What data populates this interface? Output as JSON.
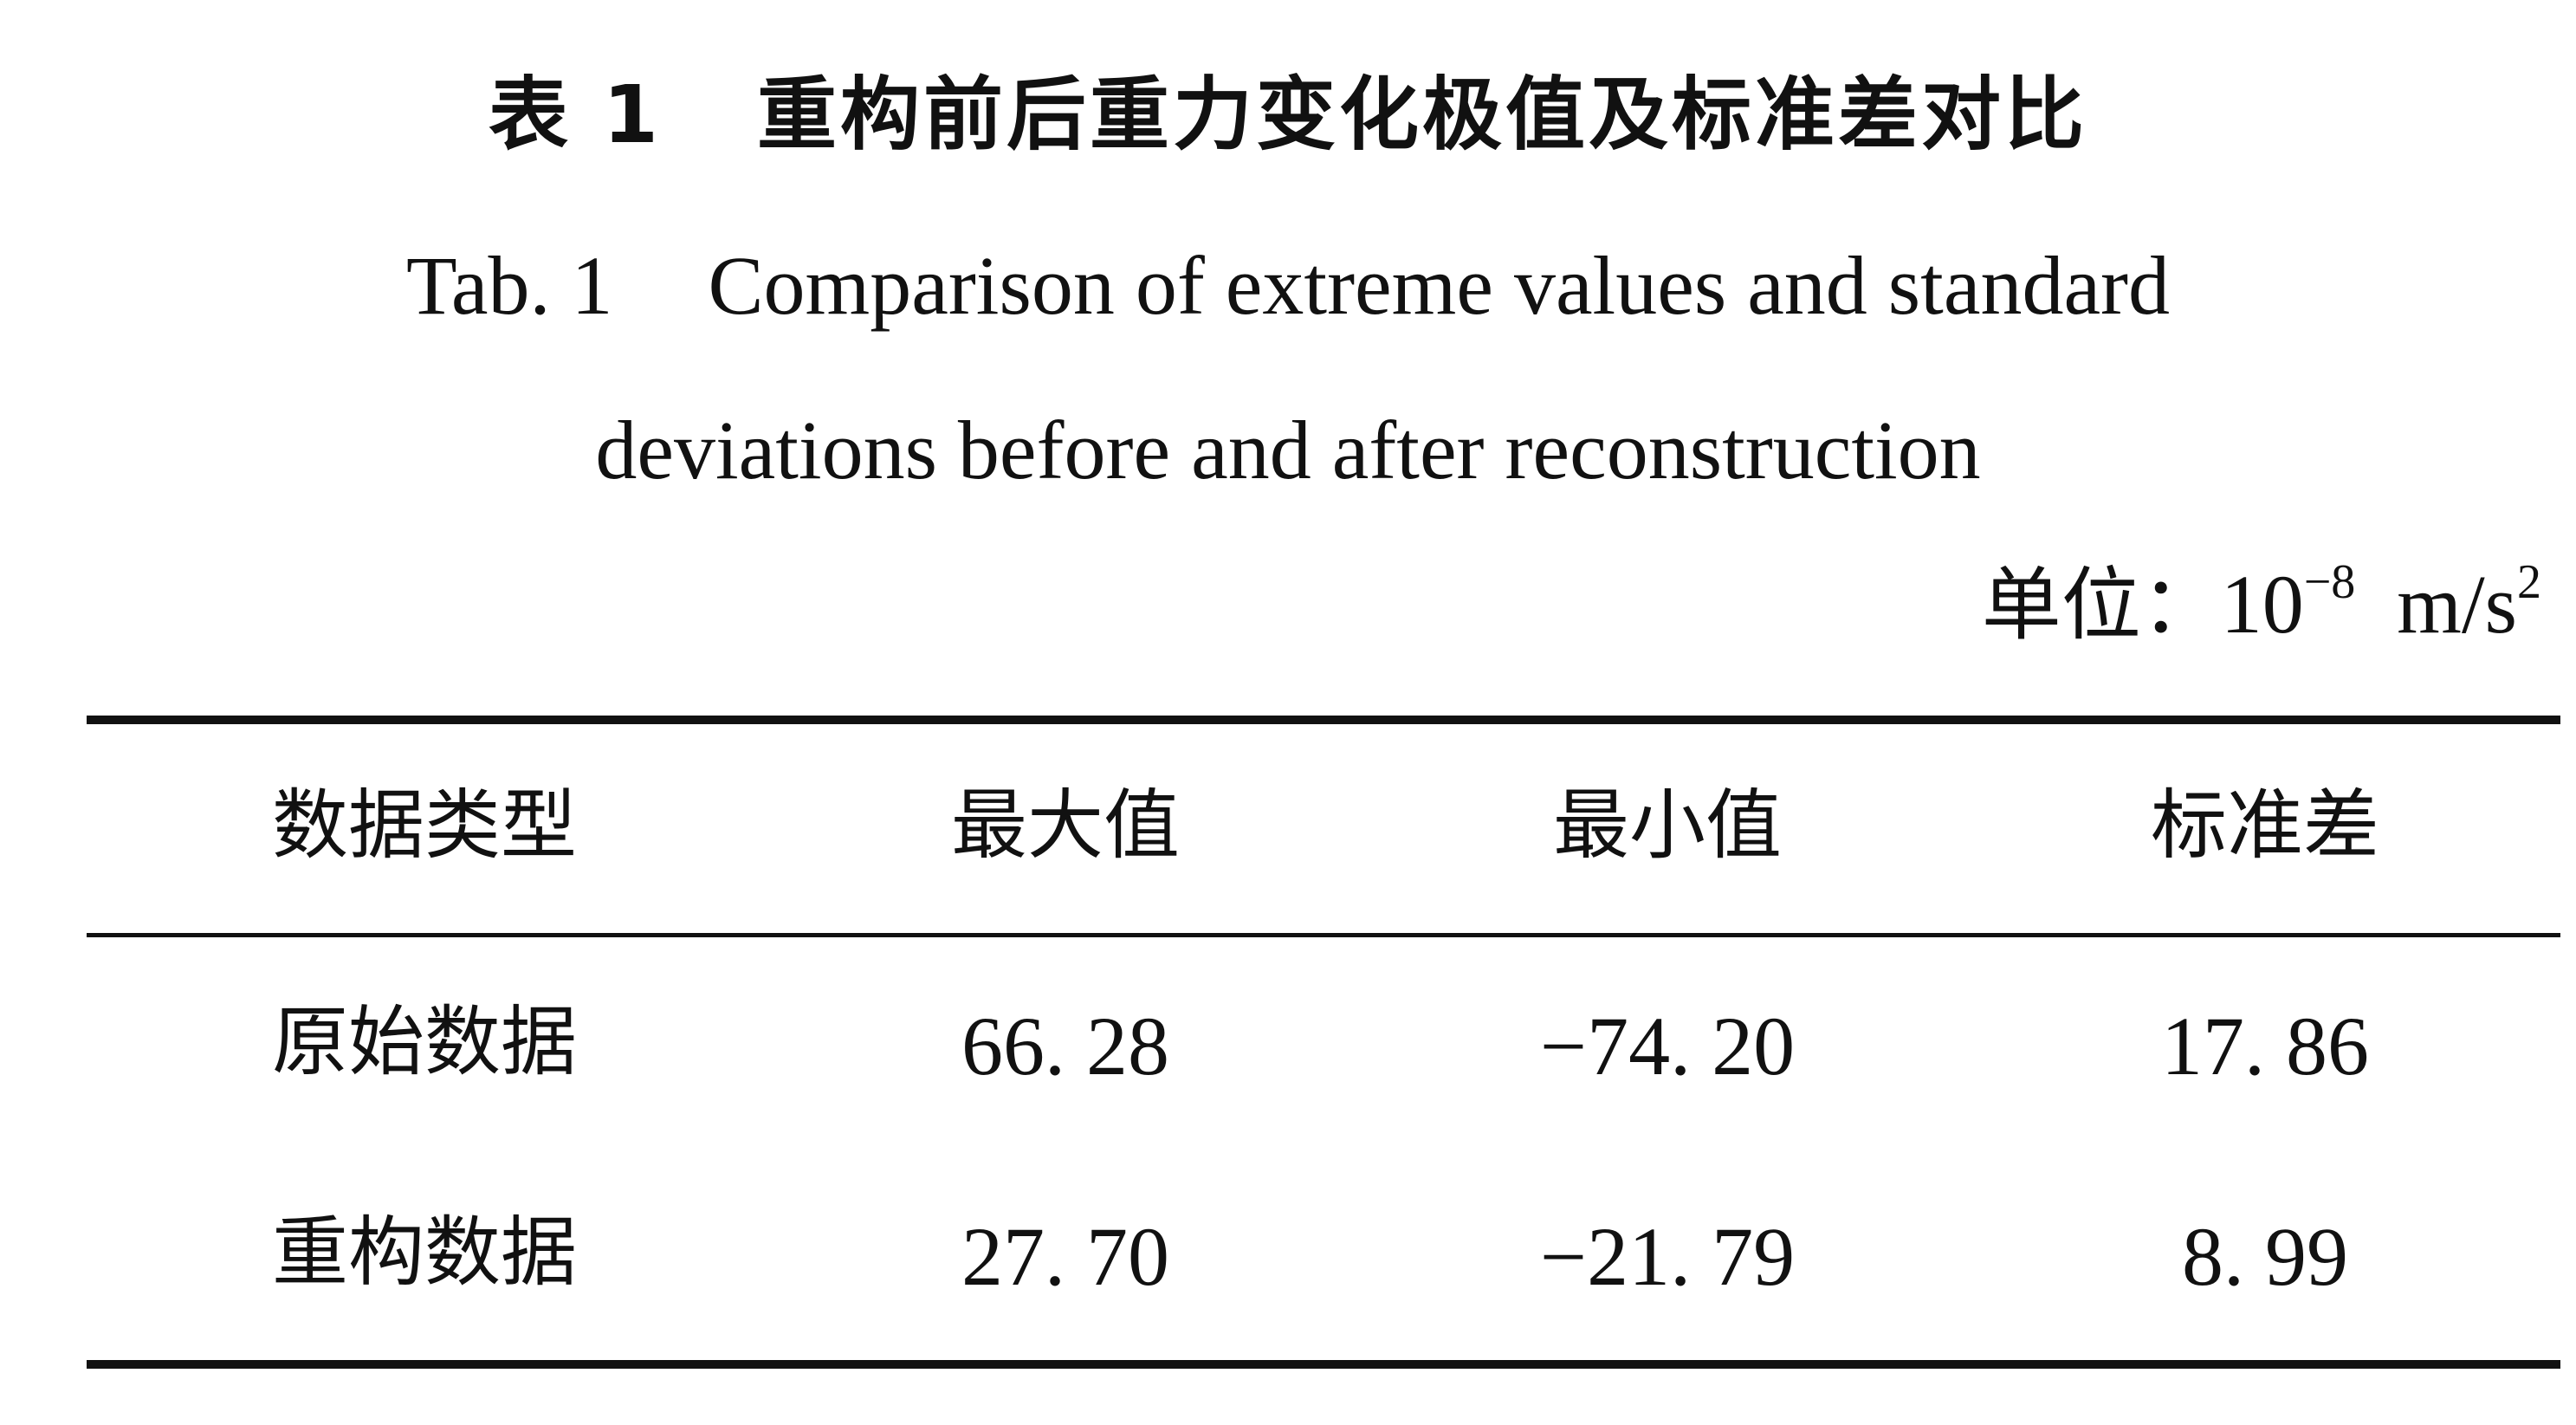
{
  "title": {
    "label_cn": "表 1",
    "text_cn": "重构前后重力变化极值及标准差对比",
    "label_en": "Tab. 1",
    "text_en_line1": "Comparison of extreme values and standard",
    "text_en_line2": "deviations before and after reconstruction"
  },
  "unit": {
    "label": "单位：",
    "base": "10",
    "exponent": "−8",
    "measure": "m/s",
    "measure_exponent": "2"
  },
  "table": {
    "headers": [
      "数据类型",
      "最大值",
      "最小值",
      "标准差"
    ],
    "rows": [
      [
        "原始数据",
        "66. 28",
        "−74. 20",
        "17. 86"
      ],
      [
        "重构数据",
        "27. 70",
        "−21. 79",
        "8. 99"
      ]
    ]
  }
}
